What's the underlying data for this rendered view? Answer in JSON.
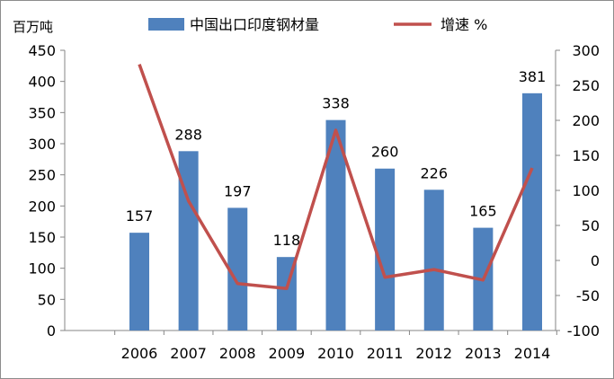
{
  "chart_data": {
    "type": "bar",
    "categories": [
      "2006",
      "2007",
      "2008",
      "2009",
      "2010",
      "2011",
      "2012",
      "2013",
      "2014"
    ],
    "series": [
      {
        "name": "中国出口印度钢材量",
        "kind": "bar",
        "axis": "left",
        "color": "#4f81bd",
        "values": [
          157,
          288,
          197,
          118,
          338,
          260,
          226,
          165,
          381
        ],
        "labels": [
          "157",
          "288",
          "197",
          "118",
          "338",
          "260",
          "226",
          "165",
          "381"
        ]
      },
      {
        "name": "增速 %",
        "kind": "line",
        "axis": "right",
        "color": "#c0504d",
        "values": [
          280,
          85,
          -33,
          -40,
          186,
          -24,
          -13,
          -28,
          132
        ]
      }
    ],
    "y_left": {
      "label": "百万吨",
      "range": [
        0,
        450
      ],
      "ticks": [
        "0",
        "50",
        "100",
        "150",
        "200",
        "250",
        "300",
        "350",
        "400",
        "450"
      ]
    },
    "y_right": {
      "range": [
        -100,
        300
      ],
      "ticks": [
        "-100",
        "-50",
        "0",
        "50",
        "100",
        "150",
        "200",
        "250",
        "300"
      ]
    },
    "legend": {
      "position": "top"
    },
    "grid": false
  }
}
